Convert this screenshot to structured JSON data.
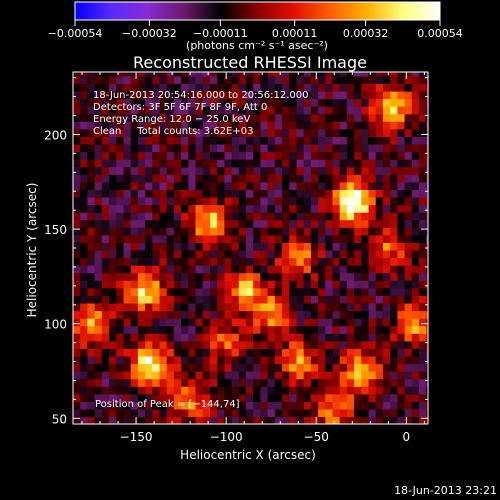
{
  "chart_data": {
    "type": "heatmap",
    "title": "Reconstructed RHESSI Image",
    "xlabel": "Heliocentric X (arcsec)",
    "ylabel": "Heliocentric Y (arcsec)",
    "xlim": [
      -185,
      12
    ],
    "ylim": [
      47,
      233
    ],
    "x_ticks": [
      -150,
      -100,
      -50,
      0
    ],
    "x_tick_labels": [
      "−150",
      "−100",
      "−50",
      "0"
    ],
    "y_ticks": [
      50,
      100,
      150,
      200
    ],
    "y_tick_labels": [
      "50",
      "100",
      "150",
      "200"
    ],
    "colorbar": {
      "min": -0.00054,
      "max": 0.00054,
      "ticks": [
        -0.00054,
        -0.00032,
        -0.00011,
        0.00011,
        0.00032,
        0.00054
      ],
      "tick_labels": [
        "−0.00054",
        "−0.00032",
        "−0.00011",
        "0.00011",
        "0.00032",
        "0.00054"
      ],
      "units_label": "(photons cm⁻² s⁻¹ asec⁻²)",
      "colors": [
        "#0000ff",
        "#5a2aff",
        "#8a2ad0",
        "#6a1a6a",
        "#000000",
        "#8a0000",
        "#e01000",
        "#ff6000",
        "#ffb000",
        "#ffff80",
        "#ffffff"
      ]
    },
    "annotations": [
      "18-Jun-2013 20:54:16.000 to 20:56:12.000",
      "Detectors: 3F 5F 6F 7F 8F 9F, Att 0",
      "Energy Range: 12.0 − 25.0 keV",
      "Clean     Total counts: 3.62E+03"
    ],
    "peak_label": "Position of Peak = [−144,74]",
    "peak": [
      -144,
      74
    ],
    "footer_timestamp": "18-Jun-2013 23:21",
    "sources": [
      {
        "x": -30,
        "y": 165,
        "intensity": 1.0
      },
      {
        "x": -142,
        "y": 78,
        "intensity": 0.85
      },
      {
        "x": -8,
        "y": 215,
        "intensity": 0.7
      },
      {
        "x": -145,
        "y": 118,
        "intensity": 0.7
      },
      {
        "x": -110,
        "y": 155,
        "intensity": 0.65
      },
      {
        "x": -175,
        "y": 100,
        "intensity": 0.6
      },
      {
        "x": -90,
        "y": 118,
        "intensity": 0.6
      },
      {
        "x": -75,
        "y": 105,
        "intensity": 0.55
      },
      {
        "x": -60,
        "y": 80,
        "intensity": 0.55
      },
      {
        "x": -25,
        "y": 75,
        "intensity": 0.65
      },
      {
        "x": -60,
        "y": 135,
        "intensity": 0.5
      },
      {
        "x": -120,
        "y": 60,
        "intensity": 0.5
      },
      {
        "x": -40,
        "y": 55,
        "intensity": 0.5
      },
      {
        "x": 5,
        "y": 100,
        "intensity": 0.55
      },
      {
        "x": -10,
        "y": 140,
        "intensity": 0.45
      },
      {
        "x": -100,
        "y": 90,
        "intensity": 0.4
      }
    ],
    "background_level": -0.2,
    "grid": false
  }
}
